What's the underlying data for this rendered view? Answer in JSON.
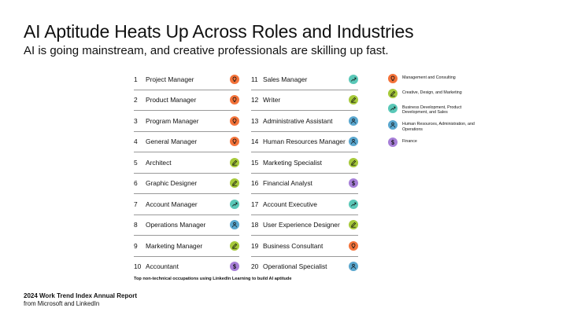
{
  "title": "AI Aptitude Heats Up Across Roles and Industries",
  "subtitle": "AI is going mainstream, and creative professionals are skilling up fast.",
  "categories": {
    "management": {
      "label": "Management and Consulting",
      "color": "#f4733a",
      "icon": "lightbulb-icon"
    },
    "creative": {
      "label": "Creative, Design, and Marketing",
      "color": "#a6c93a",
      "icon": "pencil-icon"
    },
    "business": {
      "label": "Business Development, Product Development, and Sales",
      "color": "#5ac8b8",
      "icon": "trend-up-icon"
    },
    "hr": {
      "label": "Human Resources, Administration, and Operations",
      "color": "#5aa7cf",
      "icon": "person-icon"
    },
    "finance": {
      "label": "Finance",
      "color": "#a77fd8",
      "icon": "dollar-icon"
    }
  },
  "occupations_left": [
    {
      "rank": "1",
      "name": "Project Manager",
      "category": "management"
    },
    {
      "rank": "2",
      "name": "Product Manager",
      "category": "management"
    },
    {
      "rank": "3",
      "name": "Program Manager",
      "category": "management"
    },
    {
      "rank": "4",
      "name": "General Manager",
      "category": "management"
    },
    {
      "rank": "5",
      "name": "Architect",
      "category": "creative"
    },
    {
      "rank": "6",
      "name": "Graphic Designer",
      "category": "creative"
    },
    {
      "rank": "7",
      "name": "Account Manager",
      "category": "business"
    },
    {
      "rank": "8",
      "name": "Operations Manager",
      "category": "hr"
    },
    {
      "rank": "9",
      "name": "Marketing Manager",
      "category": "creative"
    },
    {
      "rank": "10",
      "name": "Accountant",
      "category": "finance"
    }
  ],
  "occupations_right": [
    {
      "rank": "11",
      "name": "Sales Manager",
      "category": "business"
    },
    {
      "rank": "12",
      "name": "Writer",
      "category": "creative"
    },
    {
      "rank": "13",
      "name": "Administrative Assistant",
      "category": "hr"
    },
    {
      "rank": "14",
      "name": "Human Resources Manager",
      "category": "hr"
    },
    {
      "rank": "15",
      "name": "Marketing Specialist",
      "category": "creative"
    },
    {
      "rank": "16",
      "name": "Financial Analyst",
      "category": "finance"
    },
    {
      "rank": "17",
      "name": "Account Executive",
      "category": "business"
    },
    {
      "rank": "18",
      "name": "User Experience Designer",
      "category": "creative"
    },
    {
      "rank": "19",
      "name": "Business Consultant",
      "category": "management"
    },
    {
      "rank": "20",
      "name": "Operational Specialist",
      "category": "hr"
    }
  ],
  "legend_order": [
    "management",
    "creative",
    "business",
    "hr",
    "finance"
  ],
  "footnote": "Top non-technical occupations using LinkedIn Learning to build AI aptitude",
  "report": "2024 Work Trend Index Annual Report",
  "source": "from Microsoft and LinkedIn"
}
